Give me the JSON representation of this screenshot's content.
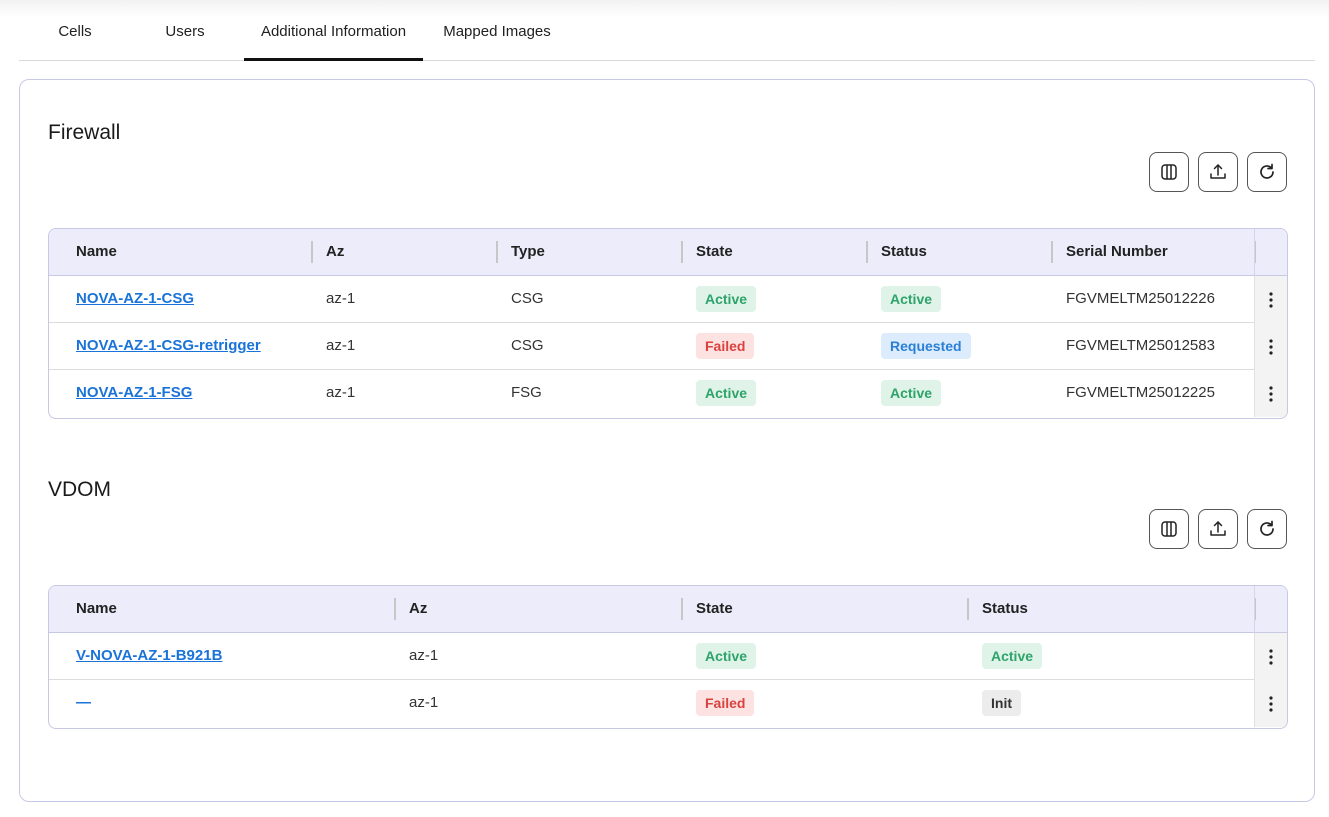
{
  "tabs": [
    {
      "label": "Cells",
      "active": false
    },
    {
      "label": "Users",
      "active": false
    },
    {
      "label": "Additional Information",
      "active": true
    },
    {
      "label": "Mapped Images",
      "active": false
    }
  ],
  "firewall": {
    "title": "Firewall",
    "toolbar": {
      "columns_icon": "columns-icon",
      "export_icon": "upload-icon",
      "refresh_icon": "refresh-icon"
    },
    "columns": [
      "Name",
      "Az",
      "Type",
      "State",
      "Status",
      "Serial Number"
    ],
    "rows": [
      {
        "name": "NOVA-AZ-1-CSG",
        "az": "az-1",
        "type": "CSG",
        "state": "Active",
        "status": "Active",
        "serial": "FGVMELTM25012226"
      },
      {
        "name": "NOVA-AZ-1-CSG-retrigger",
        "az": "az-1",
        "type": "CSG",
        "state": "Failed",
        "status": "Requested",
        "serial": "FGVMELTM25012583"
      },
      {
        "name": "NOVA-AZ-1-FSG",
        "az": "az-1",
        "type": "FSG",
        "state": "Active",
        "status": "Active",
        "serial": "FGVMELTM25012225"
      }
    ]
  },
  "vdom": {
    "title": "VDOM",
    "toolbar": {
      "columns_icon": "columns-icon",
      "export_icon": "upload-icon",
      "refresh_icon": "refresh-icon"
    },
    "columns": [
      "Name",
      "Az",
      "State",
      "Status"
    ],
    "rows": [
      {
        "name": "V-NOVA-AZ-1-B921B",
        "az": "az-1",
        "state": "Active",
        "status": "Active"
      },
      {
        "name": "—",
        "az": "az-1",
        "state": "Failed",
        "status": "Init"
      }
    ]
  },
  "colors": {
    "accent_link": "#1a73d9",
    "header_bg": "#ececfb",
    "active_bg": "#dff3e8",
    "active_text": "#2ea36a",
    "failed_bg": "#fde2e2",
    "failed_text": "#d9423f",
    "requested_bg": "#dcecfc",
    "requested_text": "#2b7fd4",
    "init_bg": "#ececec"
  }
}
